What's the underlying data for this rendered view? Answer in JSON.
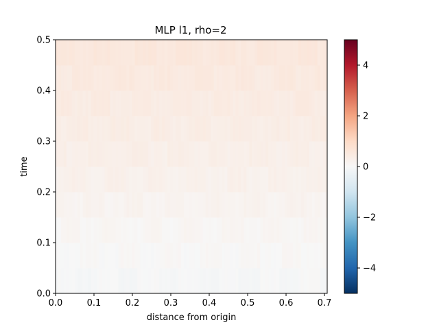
{
  "chart_data": {
    "type": "heatmap",
    "title": "MLP l1, rho=2",
    "xlabel": "distance from origin",
    "ylabel": "time",
    "xlim": [
      0.0,
      0.7071
    ],
    "ylim": [
      0.0,
      0.5
    ],
    "xticks": [
      "0.0",
      "0.1",
      "0.2",
      "0.3",
      "0.4",
      "0.5",
      "0.6",
      "0.7"
    ],
    "xtick_values": [
      0.0,
      0.1,
      0.2,
      0.3,
      0.4,
      0.5,
      0.6,
      0.7
    ],
    "yticks": [
      "0.0",
      "0.1",
      "0.2",
      "0.3",
      "0.4",
      "0.5"
    ],
    "ytick_values": [
      0.0,
      0.1,
      0.2,
      0.3,
      0.4,
      0.5
    ],
    "colormap": "RdBu_r",
    "clim": [
      -5,
      5
    ],
    "colorbar_ticks": [
      "−4",
      "−2",
      "0",
      "2",
      "4"
    ],
    "colorbar_tick_values": [
      -4,
      -2,
      0,
      2,
      4
    ],
    "y_bins": [
      0.0,
      0.05,
      0.1,
      0.15,
      0.2,
      0.25,
      0.3,
      0.35,
      0.4,
      0.45
    ],
    "row_values": [
      -0.02,
      0.05,
      0.12,
      0.2,
      0.28,
      0.34,
      0.4,
      0.46,
      0.52,
      0.58
    ],
    "x_bin_width": 0.0071,
    "x_bins": 100
  }
}
